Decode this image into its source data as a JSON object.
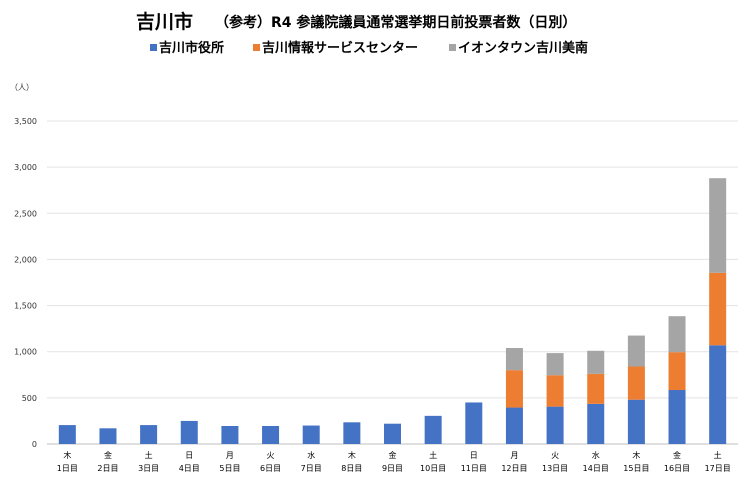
{
  "chart_data": {
    "type": "bar",
    "stacked": true,
    "title": "吉川市",
    "subtitle": "（参考）R4 参議院議員通常選挙期日前投票者数（日別）",
    "unit_label": "（人）",
    "ylim": [
      0,
      3500
    ],
    "yticks": [
      "0",
      "500",
      "1,000",
      "1,500",
      "2,000",
      "2,500",
      "3,000",
      "3,500"
    ],
    "ytick_values": [
      0,
      500,
      1000,
      1500,
      2000,
      2500,
      3000,
      3500
    ],
    "grid": true,
    "legend_position": "top",
    "categories_day": [
      "木",
      "金",
      "土",
      "日",
      "月",
      "火",
      "水",
      "木",
      "金",
      "土",
      "日",
      "月",
      "火",
      "水",
      "木",
      "金",
      "土"
    ],
    "categories_num": [
      "1日目",
      "2日目",
      "3日目",
      "4日目",
      "5日目",
      "6日目",
      "7日目",
      "8日目",
      "9日目",
      "10日目",
      "11日目",
      "12日目",
      "13日目",
      "14日目",
      "15日目",
      "16日目",
      "17日目"
    ],
    "series": [
      {
        "name": "吉川市役所",
        "color": "#4472c4",
        "values": [
          205,
          170,
          205,
          250,
          195,
          195,
          200,
          235,
          220,
          305,
          450,
          395,
          405,
          435,
          480,
          585,
          1070
        ]
      },
      {
        "name": "吉川情報サービスセンター",
        "color": "#ed7d31",
        "values": [
          0,
          0,
          0,
          0,
          0,
          0,
          0,
          0,
          0,
          0,
          0,
          405,
          340,
          325,
          360,
          410,
          785
        ]
      },
      {
        "name": "イオンタウン吉川美南",
        "color": "#a5a5a5",
        "values": [
          0,
          0,
          0,
          0,
          0,
          0,
          0,
          0,
          0,
          0,
          0,
          240,
          240,
          250,
          335,
          390,
          1025
        ]
      }
    ]
  }
}
